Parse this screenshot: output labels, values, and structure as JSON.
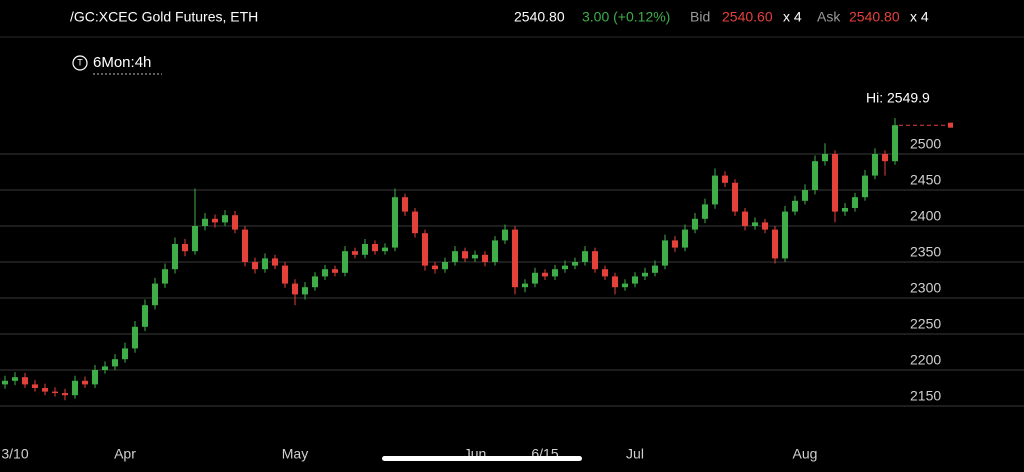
{
  "header": {
    "symbol": "/GC:XCEC Gold Futures, ETH",
    "last": "2540.80",
    "change": "3.00 (+0.12%)",
    "bid_label": "Bid",
    "bid": "2540.60",
    "bid_size": "x 4",
    "ask_label": "Ask",
    "ask": "2540.80",
    "ask_size": "x 4",
    "period": "6Mon:4h",
    "period_icon": "T"
  },
  "chart_data": {
    "type": "candlestick",
    "annotation": "Hi: 2549.9",
    "up_color": "#3fae49",
    "down_color": "#e5413b",
    "grid": true,
    "ylim": [
      2100,
      2600
    ],
    "yticks": [
      2150,
      2200,
      2250,
      2300,
      2350,
      2400,
      2450,
      2500
    ],
    "categories": [
      null,
      "3/10",
      null,
      null,
      null,
      null,
      null,
      null,
      null,
      null,
      null,
      null,
      "Apr",
      null,
      null,
      null,
      null,
      null,
      null,
      null,
      null,
      null,
      null,
      null,
      null,
      null,
      null,
      null,
      null,
      "May",
      null,
      null,
      null,
      null,
      null,
      null,
      null,
      null,
      null,
      null,
      null,
      null,
      null,
      null,
      null,
      null,
      null,
      "Jun",
      null,
      null,
      null,
      null,
      null,
      null,
      "6/15",
      null,
      null,
      null,
      null,
      null,
      null,
      null,
      null,
      "Jul",
      null,
      null,
      null,
      null,
      null,
      null,
      null,
      null,
      null,
      null,
      null,
      null,
      null,
      null,
      null,
      null,
      "Aug",
      null,
      null,
      null,
      null,
      null,
      null,
      null,
      null,
      null
    ],
    "open": [
      2180,
      2185,
      2190,
      2180,
      2175,
      2170,
      2168,
      2165,
      2185,
      2180,
      2200,
      2205,
      2215,
      2230,
      2260,
      2290,
      2320,
      2340,
      2375,
      2365,
      2400,
      2410,
      2405,
      2415,
      2395,
      2350,
      2340,
      2355,
      2345,
      2320,
      2305,
      2315,
      2330,
      2340,
      2335,
      2365,
      2360,
      2375,
      2365,
      2370,
      2440,
      2420,
      2390,
      2345,
      2340,
      2350,
      2365,
      2355,
      2360,
      2350,
      2380,
      2395,
      2315,
      2320,
      2335,
      2330,
      2340,
      2345,
      2350,
      2365,
      2340,
      2330,
      2315,
      2320,
      2330,
      2335,
      2345,
      2380,
      2370,
      2395,
      2410,
      2430,
      2470,
      2460,
      2420,
      2400,
      2405,
      2395,
      2355,
      2420,
      2435,
      2450,
      2490,
      2500,
      2420,
      2425,
      2440,
      2470,
      2500,
      2490
    ],
    "high": [
      2192,
      2197,
      2196,
      2186,
      2181,
      2176,
      2174,
      2192,
      2191,
      2207,
      2212,
      2222,
      2238,
      2268,
      2298,
      2328,
      2348,
      2384,
      2382,
      2452,
      2418,
      2416,
      2422,
      2421,
      2400,
      2356,
      2362,
      2360,
      2350,
      2326,
      2322,
      2336,
      2346,
      2345,
      2372,
      2370,
      2382,
      2380,
      2376,
      2452,
      2445,
      2425,
      2395,
      2350,
      2356,
      2372,
      2370,
      2366,
      2365,
      2386,
      2402,
      2400,
      2326,
      2342,
      2340,
      2346,
      2352,
      2356,
      2372,
      2370,
      2345,
      2335,
      2326,
      2336,
      2342,
      2352,
      2388,
      2386,
      2402,
      2418,
      2438,
      2480,
      2476,
      2465,
      2425,
      2412,
      2410,
      2400,
      2428,
      2442,
      2458,
      2498,
      2515,
      2505,
      2432,
      2446,
      2478,
      2508,
      2505,
      2549.9
    ],
    "low": [
      2174,
      2179,
      2175,
      2170,
      2165,
      2163,
      2158,
      2160,
      2175,
      2175,
      2195,
      2200,
      2210,
      2224,
      2254,
      2284,
      2314,
      2334,
      2358,
      2360,
      2394,
      2398,
      2400,
      2390,
      2344,
      2334,
      2335,
      2340,
      2314,
      2290,
      2298,
      2310,
      2325,
      2330,
      2330,
      2355,
      2355,
      2360,
      2360,
      2365,
      2414,
      2384,
      2338,
      2334,
      2335,
      2345,
      2350,
      2350,
      2344,
      2345,
      2375,
      2305,
      2308,
      2315,
      2325,
      2325,
      2335,
      2340,
      2345,
      2335,
      2325,
      2305,
      2310,
      2315,
      2325,
      2330,
      2340,
      2364,
      2365,
      2390,
      2404,
      2424,
      2454,
      2414,
      2394,
      2395,
      2390,
      2348,
      2350,
      2415,
      2430,
      2444,
      2484,
      2405,
      2414,
      2420,
      2435,
      2465,
      2470,
      2485
    ],
    "close": [
      2185,
      2190,
      2180,
      2175,
      2170,
      2168,
      2165,
      2185,
      2180,
      2200,
      2205,
      2215,
      2230,
      2260,
      2290,
      2320,
      2340,
      2375,
      2365,
      2400,
      2410,
      2405,
      2415,
      2395,
      2350,
      2340,
      2355,
      2345,
      2320,
      2305,
      2315,
      2330,
      2340,
      2335,
      2365,
      2360,
      2375,
      2365,
      2370,
      2440,
      2420,
      2390,
      2345,
      2340,
      2350,
      2365,
      2355,
      2360,
      2350,
      2380,
      2395,
      2315,
      2320,
      2335,
      2330,
      2340,
      2345,
      2350,
      2365,
      2340,
      2330,
      2315,
      2320,
      2330,
      2335,
      2345,
      2380,
      2370,
      2395,
      2410,
      2430,
      2470,
      2460,
      2420,
      2400,
      2405,
      2395,
      2355,
      2420,
      2435,
      2450,
      2490,
      2500,
      2420,
      2425,
      2440,
      2470,
      2500,
      2490,
      2540
    ]
  }
}
